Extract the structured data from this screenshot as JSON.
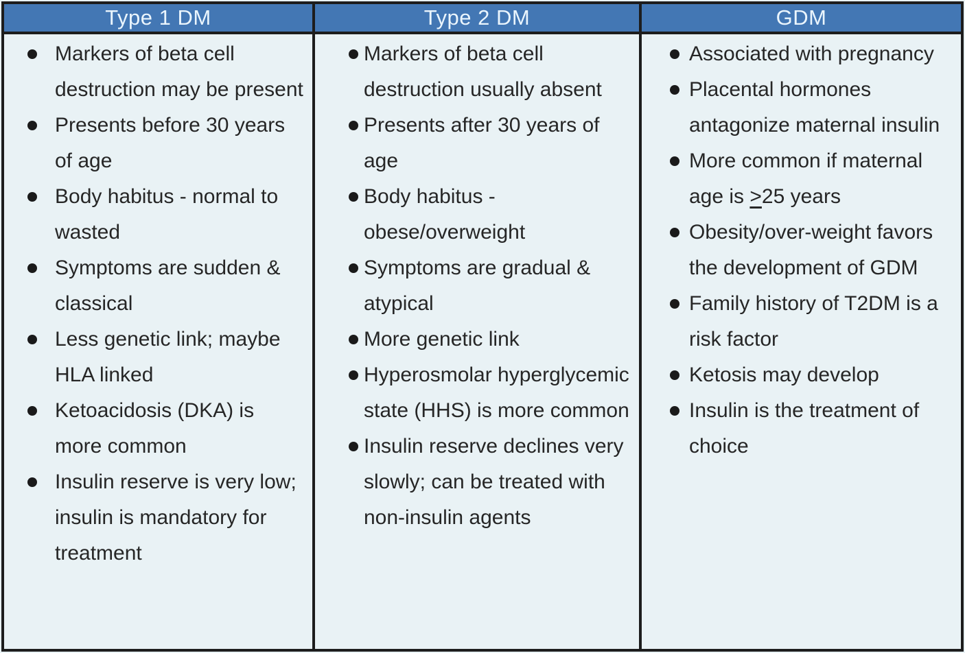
{
  "columns": [
    {
      "header": "Type 1 DM",
      "items": [
        "Markers of beta cell destruction may be present",
        "Presents before 30 years of age",
        "Body habitus - normal to wasted",
        "Symptoms are sudden & classical",
        "Less genetic link; maybe HLA linked",
        "Ketoacidosis (DKA) is more common",
        "Insulin reserve is very low; insulin is mandatory for treatment"
      ]
    },
    {
      "header": "Type 2 DM",
      "items": [
        "Markers of beta cell destruction usually absent",
        "Presents after 30 years of age",
        "Body habitus - obese/overweight",
        "Symptoms are gradual & atypical",
        "More genetic link",
        "Hyperosmolar hyperglycemic state (HHS) is more common",
        "Insulin reserve declines very slowly; can be treated with non-insulin agents"
      ]
    },
    {
      "header": "GDM",
      "items": [
        "Associated with pregnancy",
        "Placental hormones antagonize maternal insulin",
        {
          "parts": [
            {
              "text": "More common if maternal age is "
            },
            {
              "text": ">",
              "underline": true
            },
            {
              "text": "25 years"
            }
          ]
        },
        "Obesity/over-weight favors the development of GDM",
        "Family history of T2DM is a risk factor",
        "Ketosis may develop",
        "Insulin is the treatment of choice"
      ]
    }
  ],
  "colors": {
    "header_bg": "#4377b4",
    "header_text": "#eaf5fd",
    "body_bg": "#e9f2f5",
    "border": "#1d1d1d",
    "text": "#262626",
    "bullet": "#1a1a1a"
  }
}
